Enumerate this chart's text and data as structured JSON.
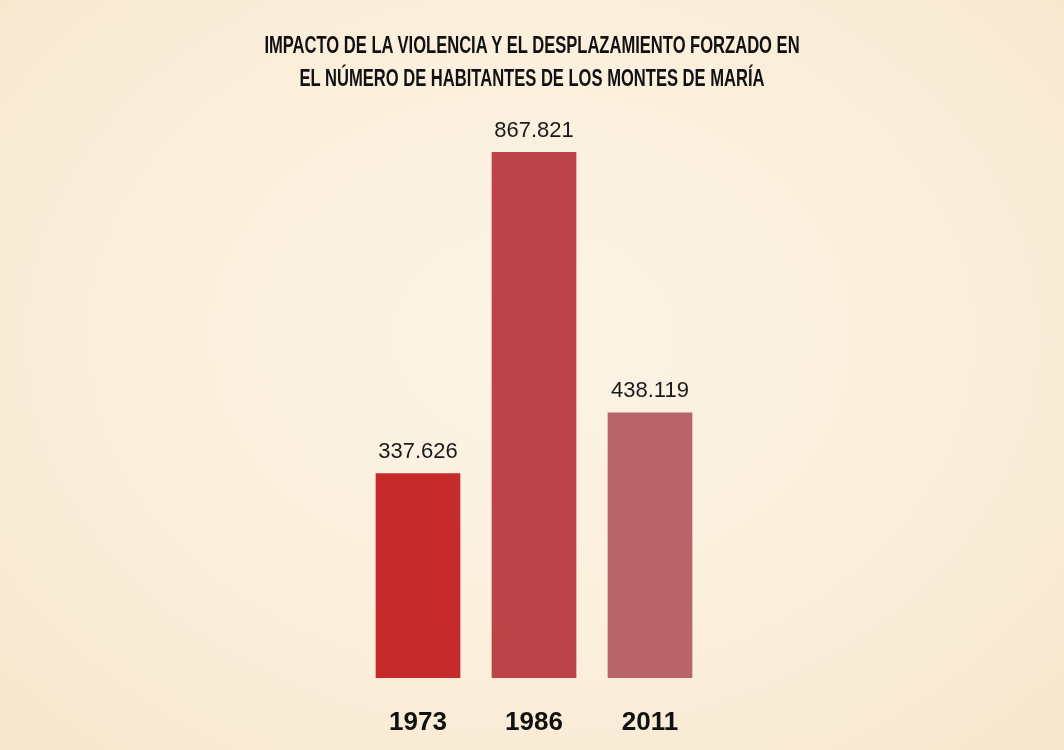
{
  "chart_data": {
    "type": "bar",
    "title": "IMPACTO DE LA VIOLENCIA Y EL DESPLAZAMIENTO FORZADO EN EL NÚMERO DE HABITANTES DE LOS MONTES DE MARÍA",
    "categories": [
      "1973",
      "1986",
      "2011"
    ],
    "values": [
      337626,
      867821,
      438119
    ],
    "colors": [
      "#c62b2b",
      "#bc4448",
      "#b8646a"
    ],
    "value_labels": [
      "337.626",
      "867.821",
      "438.119"
    ]
  }
}
